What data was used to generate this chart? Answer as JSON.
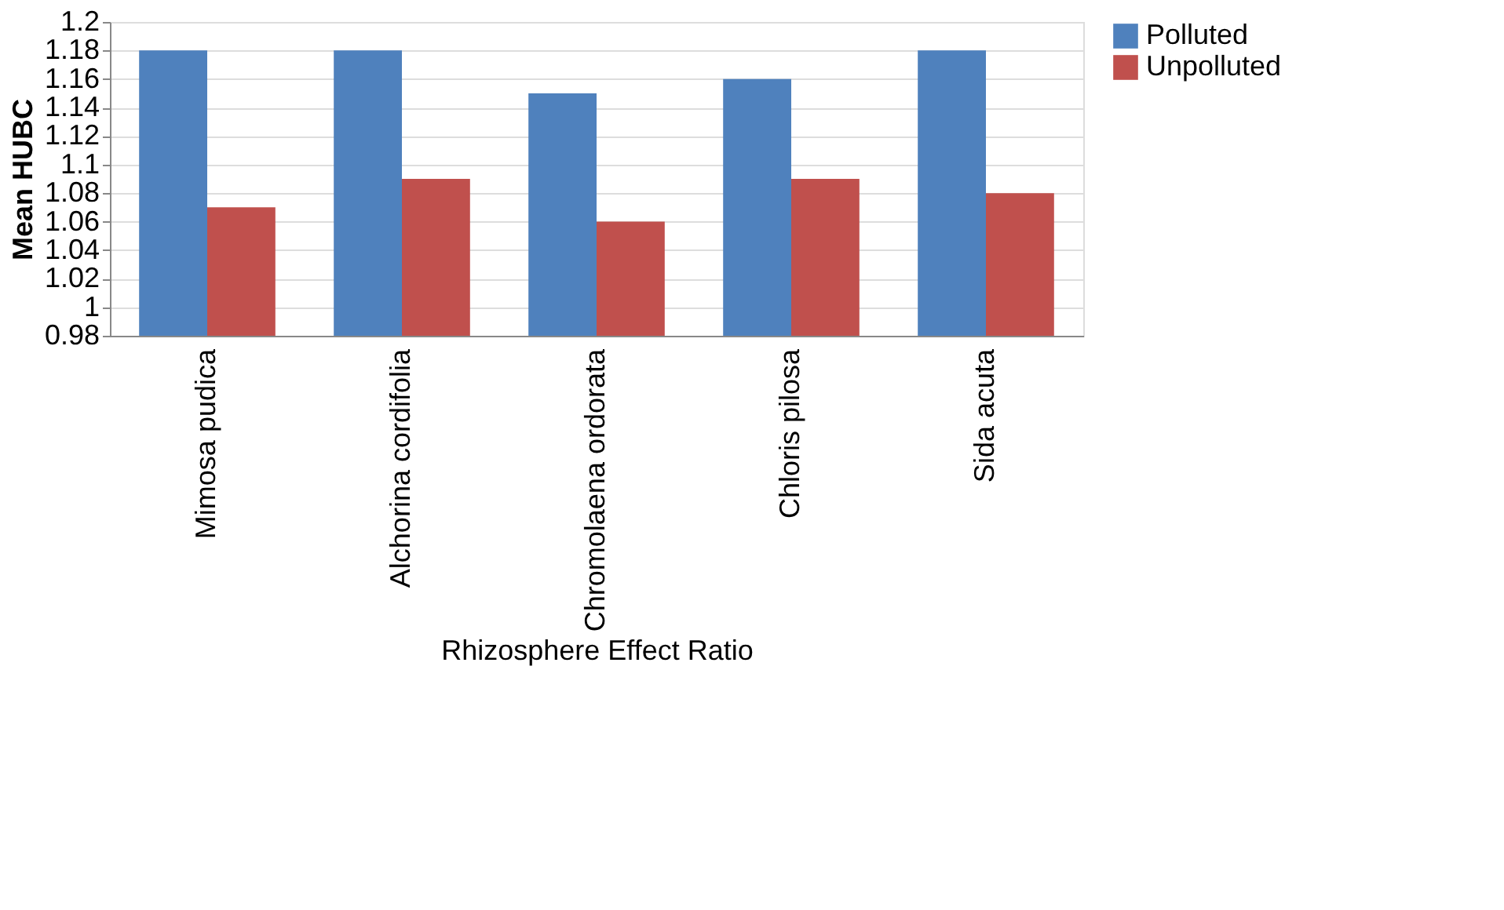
{
  "chart_data": {
    "type": "bar",
    "xlabel": "Rhizosphere Effect Ratio",
    "ylabel": "Mean HUBC",
    "categories": [
      "Mimosa pudica",
      "Alchorina cordifolia",
      "Chromolaena ordorata",
      "Chloris pilosa",
      "Sida acuta"
    ],
    "series": [
      {
        "name": "Polluted",
        "color": "#4f81bd",
        "values": [
          1.18,
          1.18,
          1.15,
          1.16,
          1.18
        ]
      },
      {
        "name": "Unpolluted",
        "color": "#c0504d",
        "values": [
          1.07,
          1.09,
          1.06,
          1.09,
          1.08
        ]
      }
    ],
    "ylim": [
      0.98,
      1.2
    ],
    "yticks": [
      0.98,
      1,
      1.02,
      1.04,
      1.06,
      1.08,
      1.1,
      1.12,
      1.14,
      1.16,
      1.18,
      1.2
    ],
    "grid": "y",
    "legend": "right"
  }
}
